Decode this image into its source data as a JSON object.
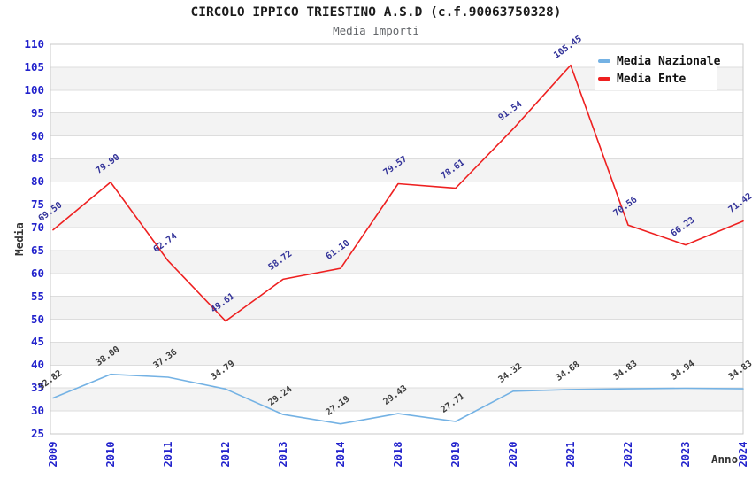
{
  "chart_data": {
    "type": "line",
    "title": "CIRCOLO IPPICO TRIESTINO A.S.D (c.f.90063750328)",
    "subtitle": "Media Importi",
    "xlabel": "Anno",
    "ylabel": "Media",
    "x": [
      "2009",
      "2010",
      "2011",
      "2012",
      "2013",
      "2014",
      "2018",
      "2019",
      "2020",
      "2021",
      "2022",
      "2023",
      "2024"
    ],
    "ylim": [
      25,
      110
    ],
    "ytick_step": 5,
    "grid": "horizontal-bands",
    "band_color": "#f3f3f3",
    "gridline_color": "#dddddd",
    "border_color": "#c9c9c9",
    "tick_label_color": "#2222cc",
    "legend_position": "top-right",
    "value_format": "0.00",
    "series": [
      {
        "name": "Media Nazionale",
        "color": "#74b2e4",
        "label_color": "#3c3c3c",
        "values": [
          32.82,
          38.0,
          37.36,
          34.79,
          29.24,
          27.19,
          29.43,
          27.71,
          34.32,
          34.68,
          34.83,
          34.94,
          34.83
        ]
      },
      {
        "name": "Media Ente",
        "color": "#ee2020",
        "label_color": "#333399",
        "values": [
          69.5,
          79.9,
          62.74,
          49.61,
          58.72,
          61.1,
          79.57,
          78.61,
          91.54,
          105.45,
          70.56,
          66.23,
          71.42
        ]
      }
    ]
  }
}
